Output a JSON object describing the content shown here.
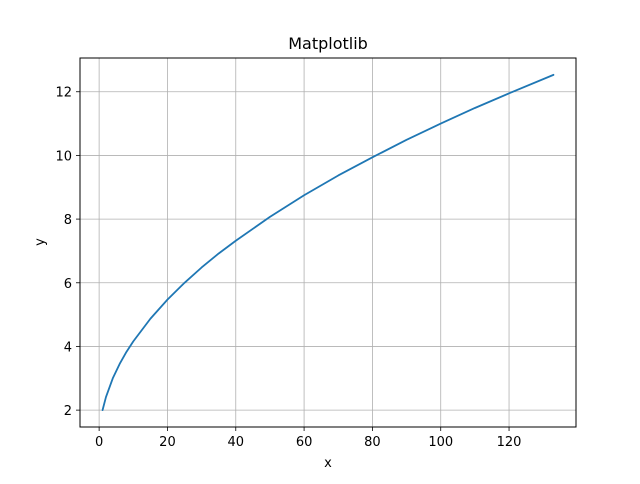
{
  "chart_data": {
    "type": "line",
    "title": "Matplotlib",
    "xlabel": "x",
    "ylabel": "y",
    "xlim": [
      -5.6,
      139.6
    ],
    "ylim": [
      1.47,
      13.06
    ],
    "xticks": [
      0,
      20,
      40,
      60,
      80,
      100,
      120
    ],
    "yticks": [
      2,
      4,
      6,
      8,
      10,
      12
    ],
    "xtick_labels": [
      "0",
      "20",
      "40",
      "60",
      "80",
      "100",
      "120"
    ],
    "ytick_labels": [
      "2",
      "4",
      "6",
      "8",
      "10",
      "12"
    ],
    "grid": true,
    "series": [
      {
        "color": "#1f77b4",
        "x": [
          1,
          2,
          4,
          6,
          8,
          10,
          15,
          20,
          25,
          30,
          35,
          40,
          50,
          60,
          70,
          80,
          90,
          100,
          110,
          120,
          133
        ],
        "y": [
          2.0,
          2.41,
          3.0,
          3.45,
          3.83,
          4.16,
          4.87,
          5.47,
          6.0,
          6.48,
          6.92,
          7.32,
          8.07,
          8.75,
          9.37,
          9.94,
          10.49,
          11.0,
          11.49,
          11.95,
          12.53
        ]
      }
    ]
  }
}
